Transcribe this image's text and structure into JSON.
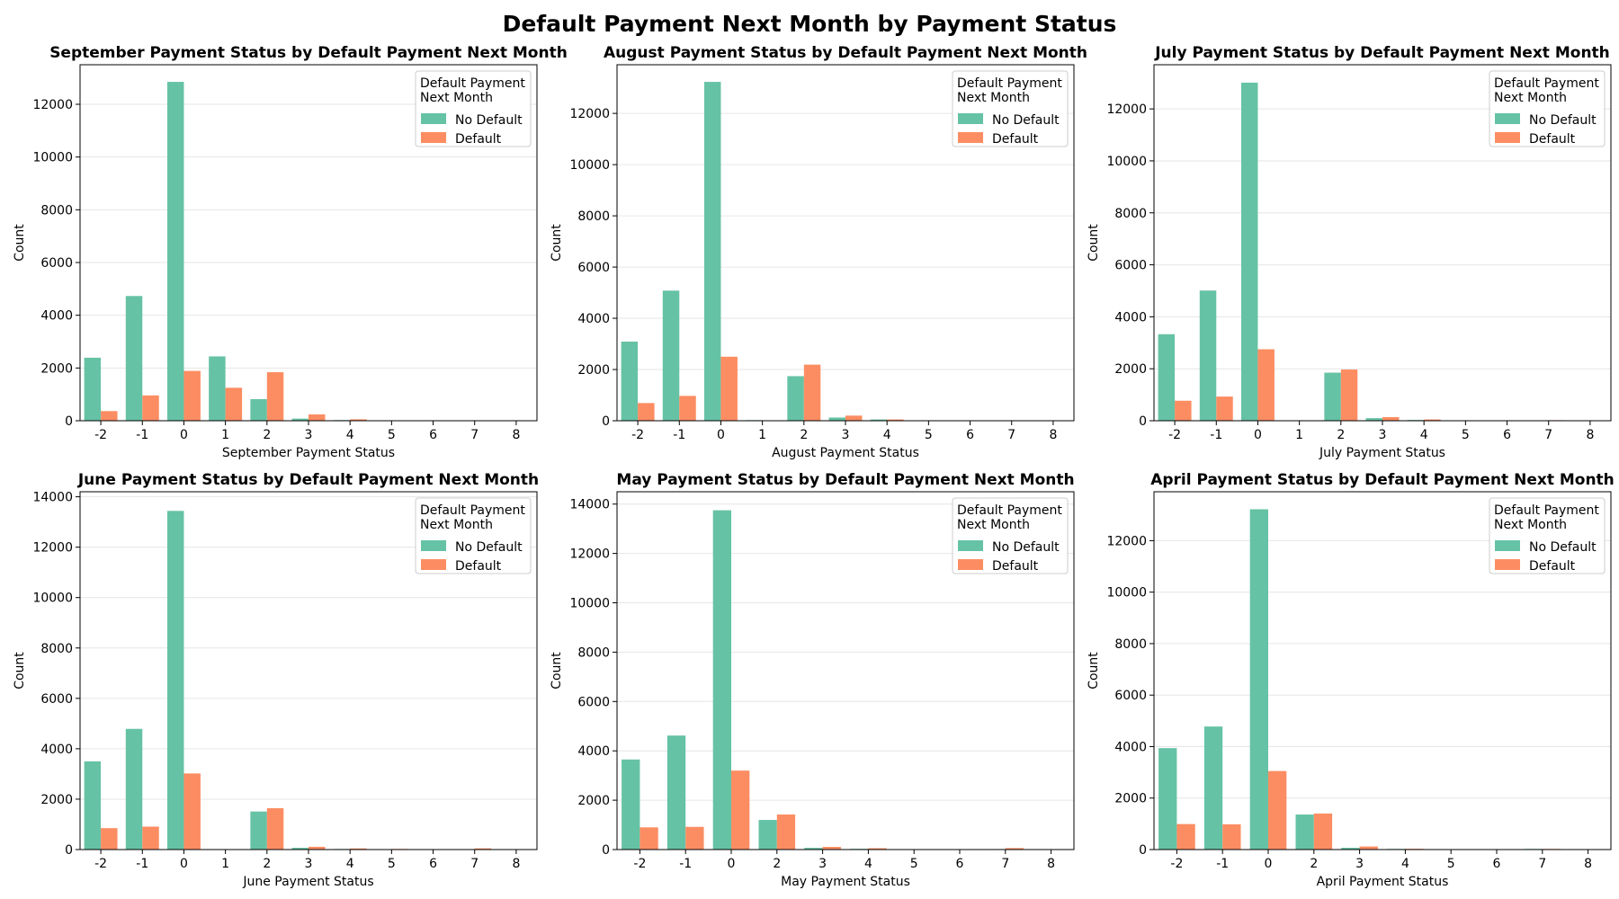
{
  "figure_title": "Default Payment Next Month by Payment Status",
  "colors": {
    "no_default": "#66c2a5",
    "default": "#fc8d62",
    "grid": "#e6e6e6"
  },
  "chart_data": [
    {
      "type": "bar",
      "title": "September Payment Status by Default Payment Next Month",
      "xlabel": "September Payment Status",
      "ylabel": "Count",
      "categories": [
        "-2",
        "-1",
        "0",
        "1",
        "2",
        "3",
        "4",
        "5",
        "6",
        "7",
        "8"
      ],
      "ylim": [
        0,
        13500
      ],
      "yticks": [
        0,
        2000,
        4000,
        6000,
        8000,
        10000,
        12000
      ],
      "grid": true,
      "legend": {
        "title": "Default Payment Next Month",
        "position": "top-right"
      },
      "series": [
        {
          "name": "No Default",
          "values": [
            2390,
            4730,
            12850,
            2440,
            820,
            80,
            25,
            10,
            5,
            5,
            8
          ]
        },
        {
          "name": "Default",
          "values": [
            365,
            960,
            1890,
            1250,
            1840,
            240,
            55,
            15,
            8,
            4,
            12
          ]
        }
      ]
    },
    {
      "type": "bar",
      "title": "August Payment Status by Default Payment Next Month",
      "xlabel": "August Payment Status",
      "ylabel": "Count",
      "categories": [
        "-2",
        "-1",
        "0",
        "1",
        "2",
        "3",
        "4",
        "5",
        "6",
        "7",
        "8"
      ],
      "ylim": [
        0,
        13900
      ],
      "yticks": [
        0,
        2000,
        4000,
        6000,
        8000,
        10000,
        12000
      ],
      "grid": true,
      "legend": {
        "title": "Default Payment Next Month",
        "position": "top-right"
      },
      "series": [
        {
          "name": "No Default",
          "values": [
            3090,
            5080,
            13230,
            23,
            1740,
            125,
            50,
            13,
            4,
            8,
            0
          ]
        },
        {
          "name": "Default",
          "values": [
            690,
            970,
            2500,
            5,
            2190,
            200,
            50,
            12,
            8,
            12,
            1
          ]
        }
      ]
    },
    {
      "type": "bar",
      "title": "July Payment Status by Default Payment Next Month",
      "xlabel": "July Payment Status",
      "ylabel": "Count",
      "categories": [
        "-2",
        "-1",
        "0",
        "1",
        "2",
        "3",
        "4",
        "5",
        "6",
        "7",
        "8"
      ],
      "ylim": [
        0,
        13700
      ],
      "yticks": [
        0,
        2000,
        4000,
        6000,
        8000,
        10000,
        12000
      ],
      "grid": true,
      "legend": {
        "title": "Default Payment Next Month",
        "position": "top-right"
      },
      "series": [
        {
          "name": "No Default",
          "values": [
            3330,
            5010,
            13010,
            2,
            1850,
            100,
            30,
            10,
            9,
            8,
            1
          ]
        },
        {
          "name": "Default",
          "values": [
            770,
            930,
            2750,
            2,
            1970,
            140,
            50,
            15,
            14,
            20,
            2
          ]
        }
      ]
    },
    {
      "type": "bar",
      "title": "June Payment Status by Default Payment Next Month",
      "xlabel": "June Payment Status",
      "ylabel": "Count",
      "categories": [
        "-2",
        "-1",
        "0",
        "1",
        "2",
        "3",
        "4",
        "5",
        "6",
        "7",
        "8"
      ],
      "ylim": [
        0,
        14200
      ],
      "yticks": [
        0,
        2000,
        4000,
        6000,
        8000,
        10000,
        12000,
        14000
      ],
      "grid": true,
      "legend": {
        "title": "Default Payment Next Month",
        "position": "top-right"
      },
      "series": [
        {
          "name": "No Default",
          "values": [
            3500,
            4790,
            13440,
            1,
            1510,
            70,
            23,
            10,
            3,
            10,
            1
          ]
        },
        {
          "name": "Default",
          "values": [
            850,
            910,
            3020,
            1,
            1640,
            110,
            45,
            25,
            2,
            48,
            1
          ]
        }
      ]
    },
    {
      "type": "bar",
      "title": "May Payment Status by Default Payment Next Month",
      "xlabel": "May Payment Status",
      "ylabel": "Count",
      "categories": [
        "-2",
        "-1",
        "0",
        "2",
        "3",
        "4",
        "5",
        "6",
        "7",
        "8"
      ],
      "ylim": [
        0,
        14500
      ],
      "yticks": [
        0,
        2000,
        4000,
        6000,
        8000,
        10000,
        12000,
        14000
      ],
      "grid": true,
      "legend": {
        "title": "Default Payment Next Month",
        "position": "top-right"
      },
      "series": [
        {
          "name": "No Default",
          "values": [
            3650,
            4620,
            13750,
            1200,
            70,
            30,
            10,
            1,
            20,
            1
          ]
        },
        {
          "name": "Default",
          "values": [
            900,
            920,
            3200,
            1420,
            110,
            55,
            15,
            3,
            60,
            1
          ]
        }
      ]
    },
    {
      "type": "bar",
      "title": "April Payment Status by Default Payment Next Month",
      "xlabel": "April Payment Status",
      "ylabel": "Count",
      "categories": [
        "-2",
        "-1",
        "0",
        "2",
        "3",
        "4",
        "5",
        "6",
        "7",
        "8"
      ],
      "ylim": [
        0,
        13900
      ],
      "yticks": [
        0,
        2000,
        4000,
        6000,
        8000,
        10000,
        12000
      ],
      "grid": true,
      "legend": {
        "title": "Default Payment Next Month",
        "position": "top-right"
      },
      "series": [
        {
          "name": "No Default",
          "values": [
            3940,
            4780,
            13220,
            1360,
            70,
            25,
            10,
            5,
            25,
            1
          ]
        },
        {
          "name": "Default",
          "values": [
            990,
            980,
            3050,
            1400,
            120,
            30,
            10,
            15,
            25,
            1
          ]
        }
      ]
    }
  ]
}
